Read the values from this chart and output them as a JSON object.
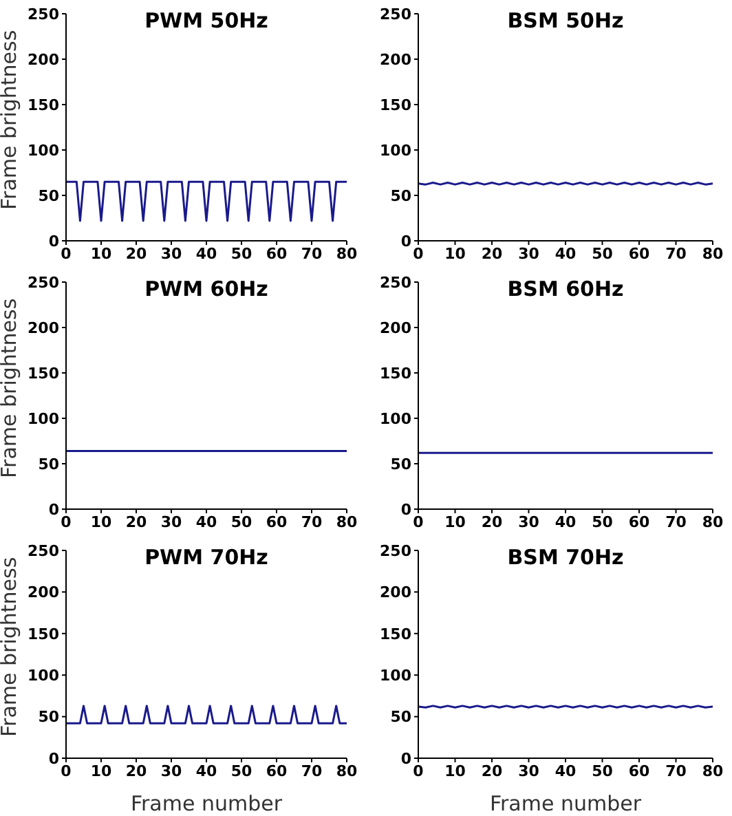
{
  "chart_data": [
    {
      "type": "line",
      "title": "PWM 50Hz",
      "ylabel": "Frame brightness",
      "xlim": [
        0,
        80
      ],
      "ylim": [
        0,
        250
      ],
      "xticks": [
        0,
        10,
        20,
        30,
        40,
        50,
        60,
        70,
        80
      ],
      "yticks": [
        0,
        50,
        100,
        150,
        200,
        250
      ],
      "grid": false,
      "series": [
        {
          "color": "#1a1a8c",
          "x": [
            0,
            3,
            4,
            5,
            9,
            10,
            11,
            15,
            16,
            17,
            21,
            22,
            23,
            27,
            28,
            29,
            33,
            34,
            35,
            39,
            40,
            41,
            45,
            46,
            47,
            51,
            52,
            53,
            57,
            58,
            59,
            63,
            64,
            65,
            69,
            70,
            71,
            75,
            76,
            77,
            80
          ],
          "values": [
            65,
            65,
            22,
            65,
            65,
            22,
            65,
            65,
            22,
            65,
            65,
            22,
            65,
            65,
            22,
            65,
            65,
            22,
            65,
            65,
            22,
            65,
            65,
            22,
            65,
            65,
            22,
            65,
            65,
            22,
            65,
            65,
            22,
            65,
            65,
            22,
            65,
            65,
            22,
            65,
            65
          ]
        }
      ]
    },
    {
      "type": "line",
      "title": "BSM 50Hz",
      "xlim": [
        0,
        80
      ],
      "ylim": [
        0,
        250
      ],
      "xticks": [
        0,
        10,
        20,
        30,
        40,
        50,
        60,
        70,
        80
      ],
      "yticks": [
        0,
        50,
        100,
        150,
        200,
        250
      ],
      "grid": false,
      "series": [
        {
          "color": "#1a1a8c",
          "x": [
            0,
            2,
            4,
            6,
            8,
            10,
            12,
            14,
            16,
            18,
            20,
            22,
            24,
            26,
            28,
            30,
            32,
            34,
            36,
            38,
            40,
            42,
            44,
            46,
            48,
            50,
            52,
            54,
            56,
            58,
            60,
            62,
            64,
            66,
            68,
            70,
            72,
            74,
            76,
            78,
            80
          ],
          "values": [
            63,
            62,
            64,
            62,
            64,
            62,
            64,
            62,
            64,
            62,
            64,
            62,
            64,
            62,
            64,
            62,
            64,
            62,
            64,
            62,
            64,
            62,
            64,
            62,
            64,
            62,
            64,
            62,
            64,
            62,
            64,
            62,
            64,
            62,
            64,
            62,
            64,
            62,
            64,
            62,
            63
          ]
        }
      ]
    },
    {
      "type": "line",
      "title": "PWM 60Hz",
      "ylabel": "Frame brightness",
      "xlim": [
        0,
        80
      ],
      "ylim": [
        0,
        250
      ],
      "xticks": [
        0,
        10,
        20,
        30,
        40,
        50,
        60,
        70,
        80
      ],
      "yticks": [
        0,
        50,
        100,
        150,
        200,
        250
      ],
      "grid": false,
      "series": [
        {
          "color": "#1a1a8c",
          "x": [
            0,
            80
          ],
          "values": [
            64,
            64
          ]
        }
      ]
    },
    {
      "type": "line",
      "title": "BSM 60Hz",
      "xlim": [
        0,
        80
      ],
      "ylim": [
        0,
        250
      ],
      "xticks": [
        0,
        10,
        20,
        30,
        40,
        50,
        60,
        70,
        80
      ],
      "yticks": [
        0,
        50,
        100,
        150,
        200,
        250
      ],
      "grid": false,
      "series": [
        {
          "color": "#1a1a8c",
          "x": [
            0,
            80
          ],
          "values": [
            62,
            62
          ]
        }
      ]
    },
    {
      "type": "line",
      "title": "PWM 70Hz",
      "ylabel": "Frame brightness",
      "xlabel": "Frame number",
      "xlim": [
        0,
        80
      ],
      "ylim": [
        0,
        250
      ],
      "xticks": [
        0,
        10,
        20,
        30,
        40,
        50,
        60,
        70,
        80
      ],
      "yticks": [
        0,
        50,
        100,
        150,
        200,
        250
      ],
      "grid": false,
      "series": [
        {
          "color": "#1a1a8c",
          "x": [
            0,
            4,
            5,
            6,
            10,
            11,
            12,
            16,
            17,
            18,
            22,
            23,
            24,
            28,
            29,
            30,
            34,
            35,
            36,
            40,
            41,
            42,
            46,
            47,
            48,
            52,
            53,
            54,
            58,
            59,
            60,
            64,
            65,
            66,
            70,
            71,
            72,
            76,
            77,
            78,
            80
          ],
          "values": [
            42,
            42,
            63,
            42,
            42,
            63,
            42,
            42,
            63,
            42,
            42,
            63,
            42,
            42,
            63,
            42,
            42,
            63,
            42,
            42,
            63,
            42,
            42,
            63,
            42,
            42,
            63,
            42,
            42,
            63,
            42,
            42,
            63,
            42,
            42,
            63,
            42,
            42,
            63,
            42,
            42
          ]
        }
      ]
    },
    {
      "type": "line",
      "title": "BSM 70Hz",
      "xlabel": "Frame number",
      "xlim": [
        0,
        80
      ],
      "ylim": [
        0,
        250
      ],
      "xticks": [
        0,
        10,
        20,
        30,
        40,
        50,
        60,
        70,
        80
      ],
      "yticks": [
        0,
        50,
        100,
        150,
        200,
        250
      ],
      "grid": false,
      "series": [
        {
          "color": "#1a1a8c",
          "x": [
            0,
            2,
            4,
            6,
            8,
            10,
            12,
            14,
            16,
            18,
            20,
            22,
            24,
            26,
            28,
            30,
            32,
            34,
            36,
            38,
            40,
            42,
            44,
            46,
            48,
            50,
            52,
            54,
            56,
            58,
            60,
            62,
            64,
            66,
            68,
            70,
            72,
            74,
            76,
            78,
            80
          ],
          "values": [
            62,
            61,
            63,
            61,
            63,
            61,
            63,
            61,
            63,
            61,
            63,
            61,
            63,
            61,
            63,
            61,
            63,
            61,
            63,
            61,
            63,
            61,
            63,
            61,
            63,
            61,
            63,
            61,
            63,
            61,
            63,
            61,
            63,
            61,
            63,
            61,
            63,
            61,
            63,
            61,
            62
          ]
        }
      ]
    }
  ]
}
